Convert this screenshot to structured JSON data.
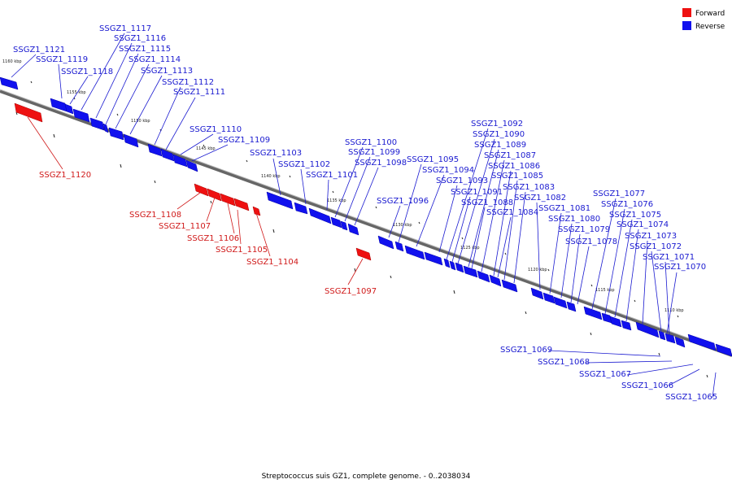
{
  "caption": "Streptococcus suis GZ1, complete genome. - 0..2038034",
  "legend": [
    {
      "label": "Forward",
      "color": "#ee1111"
    },
    {
      "label": "Reverse",
      "color": "#1111ee"
    }
  ],
  "scale_labels": [
    "1160 kbp",
    "1155 kbp",
    "1150 kbp",
    "1145 kbp",
    "1140 kbp",
    "1135 kbp",
    "1130 kbp",
    "1125 kbp",
    "1120 kbp",
    "1115 kbp",
    "1110 kbp"
  ],
  "reverse_labels": [
    "SSGZ1_1121",
    "SSGZ1_1119",
    "SSGZ1_1118",
    "SSGZ1_1117",
    "SSGZ1_1116",
    "SSGZ1_1115",
    "SSGZ1_1114",
    "SSGZ1_1113",
    "SSGZ1_1112",
    "SSGZ1_1111",
    "SSGZ1_1110",
    "SSGZ1_1109",
    "SSGZ1_1103",
    "SSGZ1_1102",
    "SSGZ1_1101",
    "SSGZ1_1100",
    "SSGZ1_1099",
    "SSGZ1_1098",
    "SSGZ1_1096",
    "SSGZ1_1095",
    "SSGZ1_1094",
    "SSGZ1_1093",
    "SSGZ1_1092",
    "SSGZ1_1091",
    "SSGZ1_1090",
    "SSGZ1_1089",
    "SSGZ1_1088",
    "SSGZ1_1087",
    "SSGZ1_1086",
    "SSGZ1_1085",
    "SSGZ1_1084",
    "SSGZ1_1083",
    "SSGZ1_1082",
    "SSGZ1_1081",
    "SSGZ1_1080",
    "SSGZ1_1079",
    "SSGZ1_1078",
    "SSGZ1_1077",
    "SSGZ1_1076",
    "SSGZ1_1075",
    "SSGZ1_1074",
    "SSGZ1_1073",
    "SSGZ1_1072",
    "SSGZ1_1071",
    "SSGZ1_1070",
    "SSGZ1_1069",
    "SSGZ1_1068",
    "SSGZ1_1067",
    "SSGZ1_1066",
    "SSGZ1_1065"
  ],
  "forward_labels": [
    "SSGZ1_1120",
    "SSGZ1_1108",
    "SSGZ1_1107",
    "SSGZ1_1106",
    "SSGZ1_1105",
    "SSGZ1_1104",
    "SSGZ1_1097"
  ]
}
